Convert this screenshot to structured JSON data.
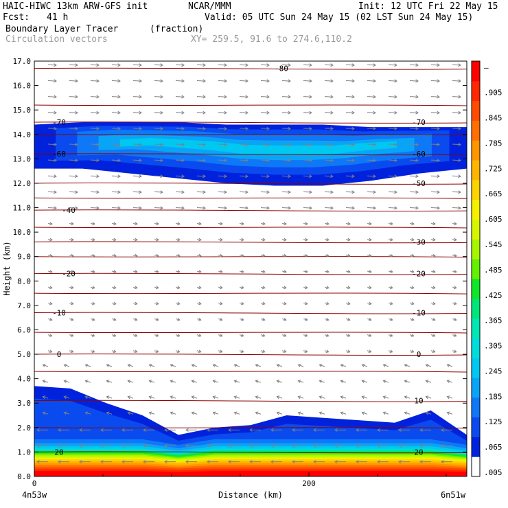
{
  "header": {
    "model": "HAIC-HIWC 13km ARW-GFS init",
    "org": "NCAR/MMM",
    "init": "Init: 12 UTC Fri 22 May 15",
    "fcst_label": "Fcst:",
    "fcst_value": "41 h",
    "valid": "Valid: 05 UTC Sun 24 May 15 (02 LST Sun 24 May 15)",
    "field": "Boundary Layer Tracer",
    "units": "(fraction)",
    "vectors": "Circulation vectors",
    "xy": "XY= 259.5, 91.6 to 274.6,110.2"
  },
  "colors": {
    "temp_contour": "#8b0000",
    "vector": "#808080",
    "colorbar": [
      "#ffffff",
      "#0022dd",
      "#0a4bf0",
      "#0e78f7",
      "#0aa4f7",
      "#00c8f0",
      "#00dcdc",
      "#00e6b4",
      "#00e678",
      "#10e628",
      "#64f000",
      "#a8f500",
      "#d7f500",
      "#f5f000",
      "#fcd200",
      "#ffb400",
      "#ff9600",
      "#ff7000",
      "#ff4c00",
      "#ff2800",
      "#fe0000"
    ]
  },
  "chart_data": {
    "type": "heatmap",
    "title": "Boundary Layer Tracer",
    "units": "(fraction)",
    "xlabel": "Distance (km)",
    "ylabel": "Height (km)",
    "xlim": [
      0,
      315
    ],
    "ylim": [
      0.0,
      17.0
    ],
    "x_ticks": [
      "0",
      "200"
    ],
    "x_ticks_values": [
      0,
      200
    ],
    "x_end_labels": [
      "4n53w",
      "6n51w"
    ],
    "y_ticks": [
      "0.0",
      "1.0",
      "2.0",
      "3.0",
      "4.0",
      "5.0",
      "6.0",
      "7.0",
      "8.0",
      "9.0",
      "10.0",
      "11.0",
      "12.0",
      "13.0",
      "14.0",
      "15.0",
      "16.0",
      "17.0"
    ],
    "colorbar_labels": [
      ".005",
      ".065",
      ".125",
      ".185",
      ".245",
      ".305",
      ".365",
      ".425",
      ".485",
      ".545",
      ".605",
      ".665",
      ".725",
      ".785",
      ".845",
      ".905",
      "–"
    ],
    "colorbar_levels": [
      0.005,
      0.065,
      0.125,
      0.185,
      0.245,
      0.305,
      0.365,
      0.425,
      0.485,
      0.545,
      0.605,
      0.665,
      0.725,
      0.785,
      0.845,
      0.905,
      0.965
    ],
    "temperature_contours": [
      {
        "label": "-80",
        "height": 16.7,
        "label_x": 180
      },
      {
        "label": "-70",
        "height": 14.5,
        "label_x": 18
      },
      {
        "label": "-70",
        "height": 14.5,
        "label_x": 280
      },
      {
        "label": "-60",
        "height": 13.2,
        "label_x": 18
      },
      {
        "label": "-60",
        "height": 13.2,
        "label_x": 280
      },
      {
        "label": "-50",
        "height": 12.0,
        "label_x": 280
      },
      {
        "label": "-40",
        "height": 10.9,
        "label_x": 25
      },
      {
        "label": "-30",
        "height": 9.6,
        "label_x": 280
      },
      {
        "label": "-20",
        "height": 8.3,
        "label_x": 25
      },
      {
        "label": "-20",
        "height": 8.3,
        "label_x": 280
      },
      {
        "label": "-10",
        "height": 6.7,
        "label_x": 18
      },
      {
        "label": "-10",
        "height": 6.7,
        "label_x": 280
      },
      {
        "label": "0",
        "height": 5.0,
        "label_x": 18
      },
      {
        "label": "0",
        "height": 5.0,
        "label_x": 280
      },
      {
        "label": "10",
        "height": 3.1,
        "label_x": 280
      },
      {
        "label": "20",
        "height": 1.0,
        "label_x": 18
      },
      {
        "label": "20",
        "height": 1.0,
        "label_x": 280
      }
    ],
    "upper_layer": {
      "base_km": [
        12.6,
        12.6,
        12.4,
        12.2,
        12.0,
        11.9,
        11.9,
        12.1,
        12.4,
        12.6
      ],
      "top_km": [
        14.4,
        14.5,
        14.5,
        14.5,
        14.4,
        14.4,
        14.4,
        14.3,
        14.3,
        14.3
      ],
      "max_fraction": 0.3
    },
    "boundary_layer_top_km": [
      3.7,
      3.6,
      3.0,
      2.5,
      1.7,
      2.0,
      2.1,
      2.5,
      2.4,
      2.3,
      2.2,
      2.7,
      1.7
    ]
  }
}
